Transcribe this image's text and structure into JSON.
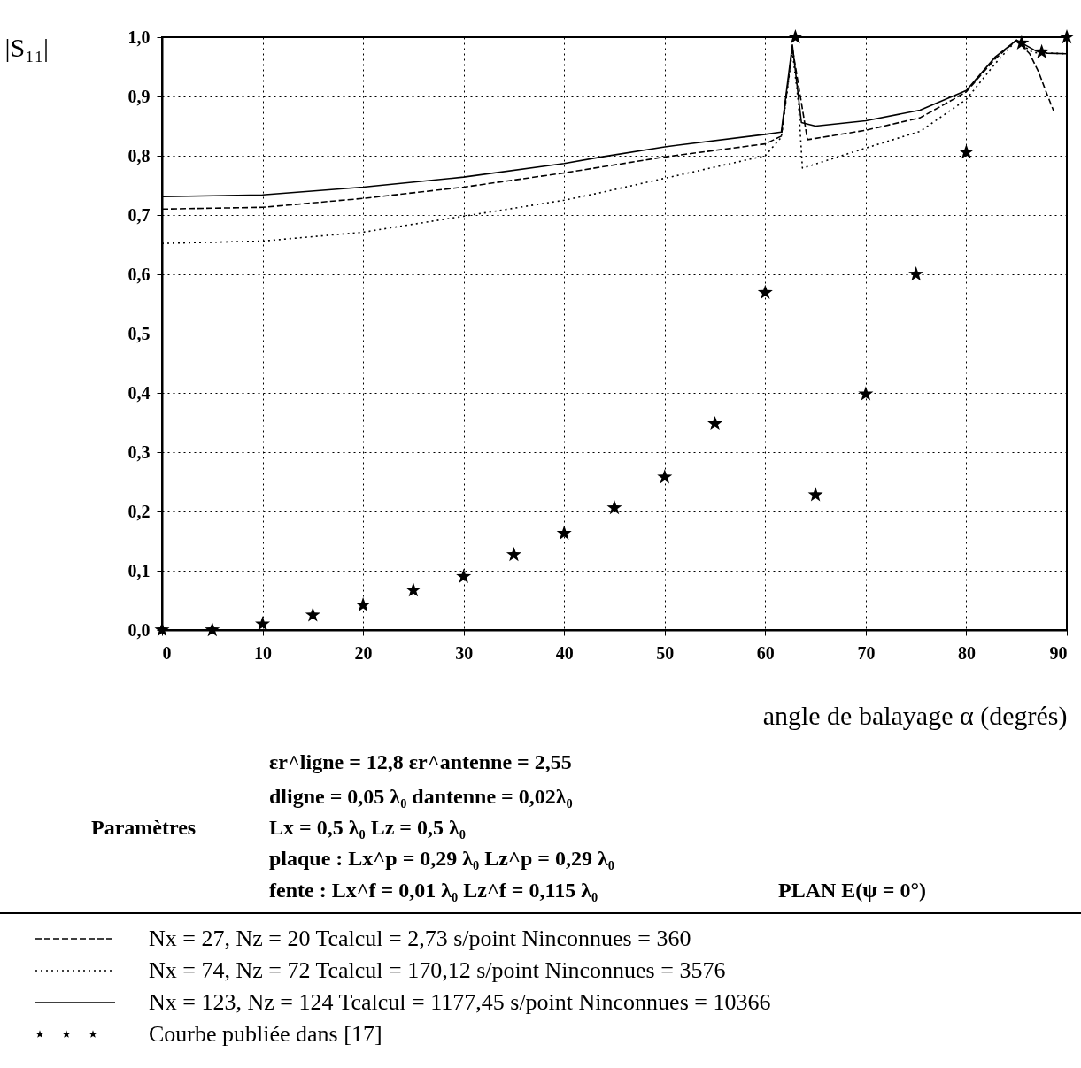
{
  "chart_data": {
    "type": "line",
    "ylabel": "|S₁₁|",
    "xlabel": "angle de balayage α (degrés)",
    "xlim": [
      0,
      90
    ],
    "ylim": [
      0,
      1
    ],
    "xticks": [
      0,
      10,
      20,
      30,
      40,
      50,
      60,
      70,
      80,
      90
    ],
    "yticks": [
      {
        "value": 0,
        "label": "0,0"
      },
      {
        "value": 0.1,
        "label": "0,1"
      },
      {
        "value": 0.2,
        "label": "0,2"
      },
      {
        "value": 0.3,
        "label": "0,3"
      },
      {
        "value": 0.4,
        "label": "0,4"
      },
      {
        "value": 0.5,
        "label": "0,5"
      },
      {
        "value": 0.6,
        "label": "0,6"
      },
      {
        "value": 0.7,
        "label": "0,7"
      },
      {
        "value": 0.8,
        "label": "0,8"
      },
      {
        "value": 0.9,
        "label": "0,9"
      },
      {
        "value": 1,
        "label": "1,0"
      }
    ],
    "grid": true,
    "legend": "bottom",
    "series": [
      {
        "name": "Nx = 27, Nz = 20   Tcalcul = 2,73 s/point   Ninconnues = 360",
        "color": "#000000",
        "line_style": "dashed",
        "x": [
          0,
          10,
          20,
          30,
          40,
          43.7,
          50,
          60,
          61.6,
          62.7,
          64.2,
          70,
          75.4,
          78.7,
          80,
          82.9,
          85,
          86.3,
          87.2,
          88,
          88.7
        ],
        "values": [
          0.71,
          0.713,
          0.728,
          0.747,
          0.771,
          0.781,
          0.798,
          0.82,
          0.833,
          0.982,
          0.827,
          0.843,
          0.864,
          0.895,
          0.908,
          0.964,
          0.995,
          0.972,
          0.941,
          0.905,
          0.875
        ]
      },
      {
        "name": "Nx = 74, Nz = 72   Tcalcul = 170,12 s/point   Ninconnues = 3576",
        "color": "#000000",
        "line_style": "dotted",
        "x": [
          0,
          10,
          20,
          30,
          40,
          43.7,
          50,
          60,
          61.6,
          62.7,
          63.3,
          63.7,
          70,
          75.4,
          80,
          82.9,
          85,
          86.6,
          90
        ],
        "values": [
          0.652,
          0.656,
          0.671,
          0.698,
          0.725,
          0.738,
          0.762,
          0.8,
          0.831,
          0.977,
          0.89,
          0.779,
          0.813,
          0.841,
          0.895,
          0.956,
          0.995,
          0.974,
          0.972
        ]
      },
      {
        "name": "Nx = 123, Nz = 124   Tcalcul = 1177,45 s/point   Ninconnues = 10366",
        "color": "#000000",
        "line_style": "solid",
        "x": [
          0,
          10,
          20,
          30,
          40,
          43.7,
          50,
          60,
          61.6,
          62.7,
          63.6,
          65,
          70,
          75.4,
          80,
          82.9,
          85,
          86.9,
          88,
          90
        ],
        "values": [
          0.731,
          0.734,
          0.747,
          0.764,
          0.787,
          0.798,
          0.815,
          0.836,
          0.84,
          0.987,
          0.856,
          0.85,
          0.859,
          0.877,
          0.91,
          0.967,
          0.995,
          0.977,
          0.973,
          0.972
        ]
      },
      {
        "name": "Courbe publiée dans [17]",
        "type": "scatter",
        "marker": "star",
        "color": "#000000",
        "x": [
          0,
          5,
          10,
          15,
          20,
          25,
          30,
          35,
          40,
          45,
          50,
          55,
          60,
          63,
          65,
          70,
          75,
          80,
          85.5,
          87.5,
          90
        ],
        "values": [
          0.0,
          0.0,
          0.01,
          0.025,
          0.042,
          0.067,
          0.09,
          0.127,
          0.163,
          0.206,
          0.258,
          0.348,
          0.569,
          1.0,
          0.228,
          0.398,
          0.6,
          0.806,
          0.99,
          0.975,
          1.0
        ]
      }
    ],
    "annotations": [
      "Paramètres",
      "εr^ligne = 12,8   εr^antenne = 2,55",
      "dligne = 0,05 λ₀   dantenne = 0,02λ₀",
      "Lx = 0,5 λ₀   Lz = 0,5 λ₀",
      "plaque : Lx^p = 0,29 λ₀   Lz^p = 0,29 λ₀",
      "fente : Lx^f = 0,01 λ₀   Lz^f = 0,115 λ₀",
      "PLAN E(ψ = 0°)"
    ]
  }
}
